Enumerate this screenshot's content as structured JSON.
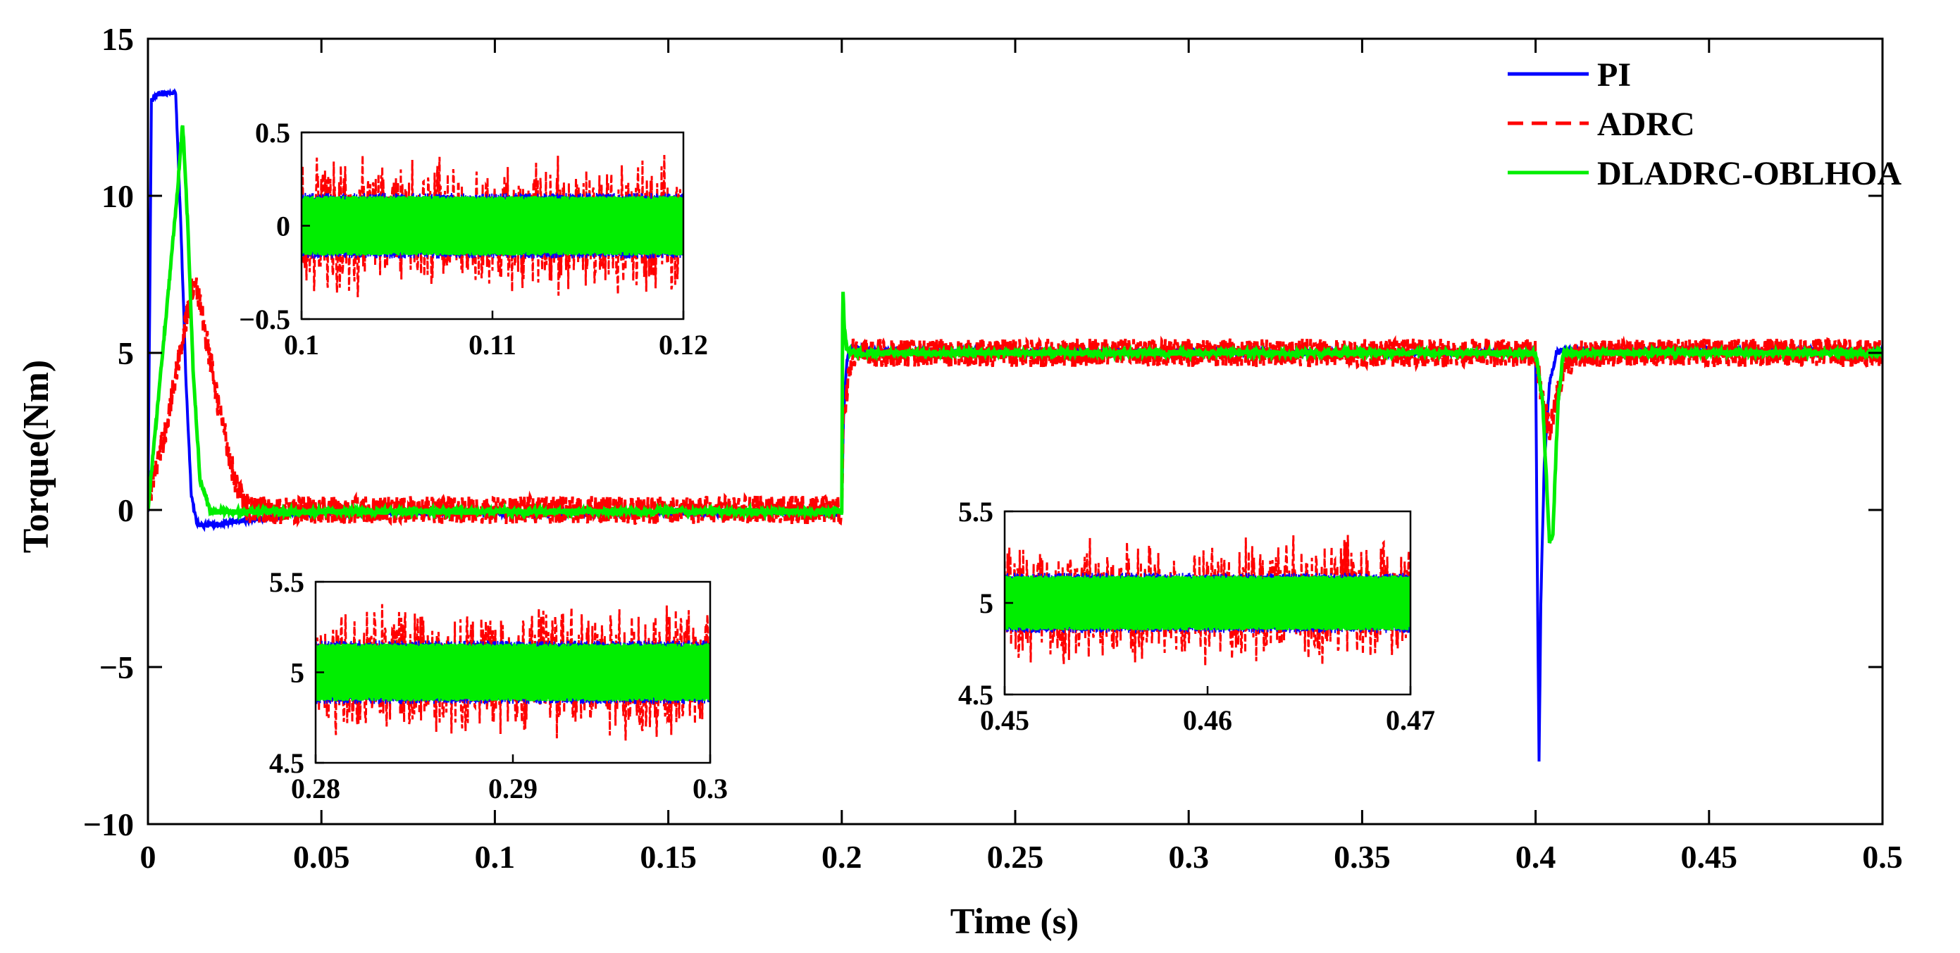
{
  "chart_data": {
    "type": "line",
    "title": "",
    "xlabel": "Time (s)",
    "ylabel": "Torque(Nm)",
    "xlim": [
      0,
      0.5
    ],
    "ylim": [
      -10,
      15
    ],
    "xticks": [
      0,
      0.05,
      0.1,
      0.15,
      0.2,
      0.25,
      0.3,
      0.35,
      0.4,
      0.45,
      0.5
    ],
    "xtick_labels": [
      "0",
      "0.05",
      "0.1",
      "0.15",
      "0.2",
      "0.25",
      "0.3",
      "0.35",
      "0.4",
      "0.45",
      "0.5"
    ],
    "yticks": [
      -10,
      -5,
      0,
      5,
      10,
      15
    ],
    "ytick_labels": [
      "−10",
      "−5",
      "0",
      "5",
      "10",
      "15"
    ],
    "grid": false,
    "legend_position": "top-right",
    "series": [
      {
        "name": "PI",
        "color": "#0000ff",
        "style": "solid",
        "noise_amplitude": 0.08,
        "x": [
          0,
          0.001,
          0.002,
          0.008,
          0.0095,
          0.011,
          0.0125,
          0.014,
          0.016,
          0.02,
          0.03,
          0.045,
          0.2,
          0.2005,
          0.2015,
          0.203,
          0.206,
          0.22,
          0.4,
          0.4005,
          0.401,
          0.4015,
          0.4025,
          0.404,
          0.406,
          0.409,
          0.5
        ],
        "values": [
          0,
          13,
          13.2,
          13.3,
          9,
          4,
          0.5,
          -0.4,
          -0.5,
          -0.45,
          -0.3,
          -0.1,
          -0.1,
          3,
          4.8,
          5.2,
          5.1,
          5.05,
          5.0,
          -2,
          -8,
          -3,
          1.5,
          4,
          5.0,
          5.1,
          5.05
        ]
      },
      {
        "name": "ADRC",
        "color": "#ff0000",
        "style": "dashed",
        "noise_amplitude": 0.45,
        "x": [
          0,
          0.005,
          0.01,
          0.0135,
          0.016,
          0.02,
          0.025,
          0.028,
          0.03,
          0.2,
          0.2005,
          0.203,
          0.22,
          0.4,
          0.402,
          0.404,
          0.406,
          0.409,
          0.412,
          0.5
        ],
        "values": [
          0.3,
          2.5,
          5.5,
          7.4,
          6.0,
          3.5,
          1.0,
          0.1,
          0.0,
          0.0,
          3.0,
          5.0,
          5.0,
          5.0,
          3.5,
          2.5,
          3.5,
          4.6,
          5.0,
          5.0
        ]
      },
      {
        "name": "DLADRC-OBLHOA",
        "color": "#00ee00",
        "style": "solid",
        "noise_amplitude": 0.1,
        "x": [
          0,
          0.008,
          0.01,
          0.0115,
          0.013,
          0.015,
          0.018,
          0.2,
          0.2003,
          0.2007,
          0.2015,
          0.203,
          0.4,
          0.402,
          0.404,
          0.405,
          0.4065,
          0.408,
          0.5
        ],
        "values": [
          0,
          9.5,
          12.3,
          9.0,
          4.5,
          1.0,
          -0.05,
          -0.05,
          7.3,
          5.8,
          5.1,
          5.0,
          5.0,
          3.5,
          -1.0,
          -0.7,
          3.5,
          5.0,
          5.0
        ]
      }
    ],
    "insets": [
      {
        "xlim": [
          0.1,
          0.12
        ],
        "ylim": [
          -0.5,
          0.5
        ],
        "xticks": [
          0.1,
          0.11,
          0.12
        ],
        "xtick_labels": [
          "0.1",
          "0.11",
          "0.12"
        ],
        "yticks": [
          -0.5,
          0,
          0.5
        ],
        "ytick_labels": [
          "−0.5",
          "0",
          "0.5"
        ],
        "center": 0,
        "adrc_range": 0.36,
        "green_range": 0.16
      },
      {
        "xlim": [
          0.28,
          0.3
        ],
        "ylim": [
          4.5,
          5.5
        ],
        "xticks": [
          0.28,
          0.29,
          0.3
        ],
        "xtick_labels": [
          "0.28",
          "0.29",
          "0.3"
        ],
        "yticks": [
          4.5,
          5,
          5.5
        ],
        "ytick_labels": [
          "4.5",
          "5",
          "5.5"
        ],
        "center": 5,
        "adrc_range": 0.36,
        "green_range": 0.16
      },
      {
        "xlim": [
          0.45,
          0.47
        ],
        "ylim": [
          4.5,
          5.5
        ],
        "xticks": [
          0.45,
          0.46,
          0.47
        ],
        "xtick_labels": [
          "0.45",
          "0.46",
          "0.47"
        ],
        "yticks": [
          4.5,
          5,
          5.5
        ],
        "ytick_labels": [
          "4.5",
          "5",
          "5.5"
        ],
        "center": 5,
        "adrc_range": 0.34,
        "green_range": 0.15
      }
    ]
  }
}
